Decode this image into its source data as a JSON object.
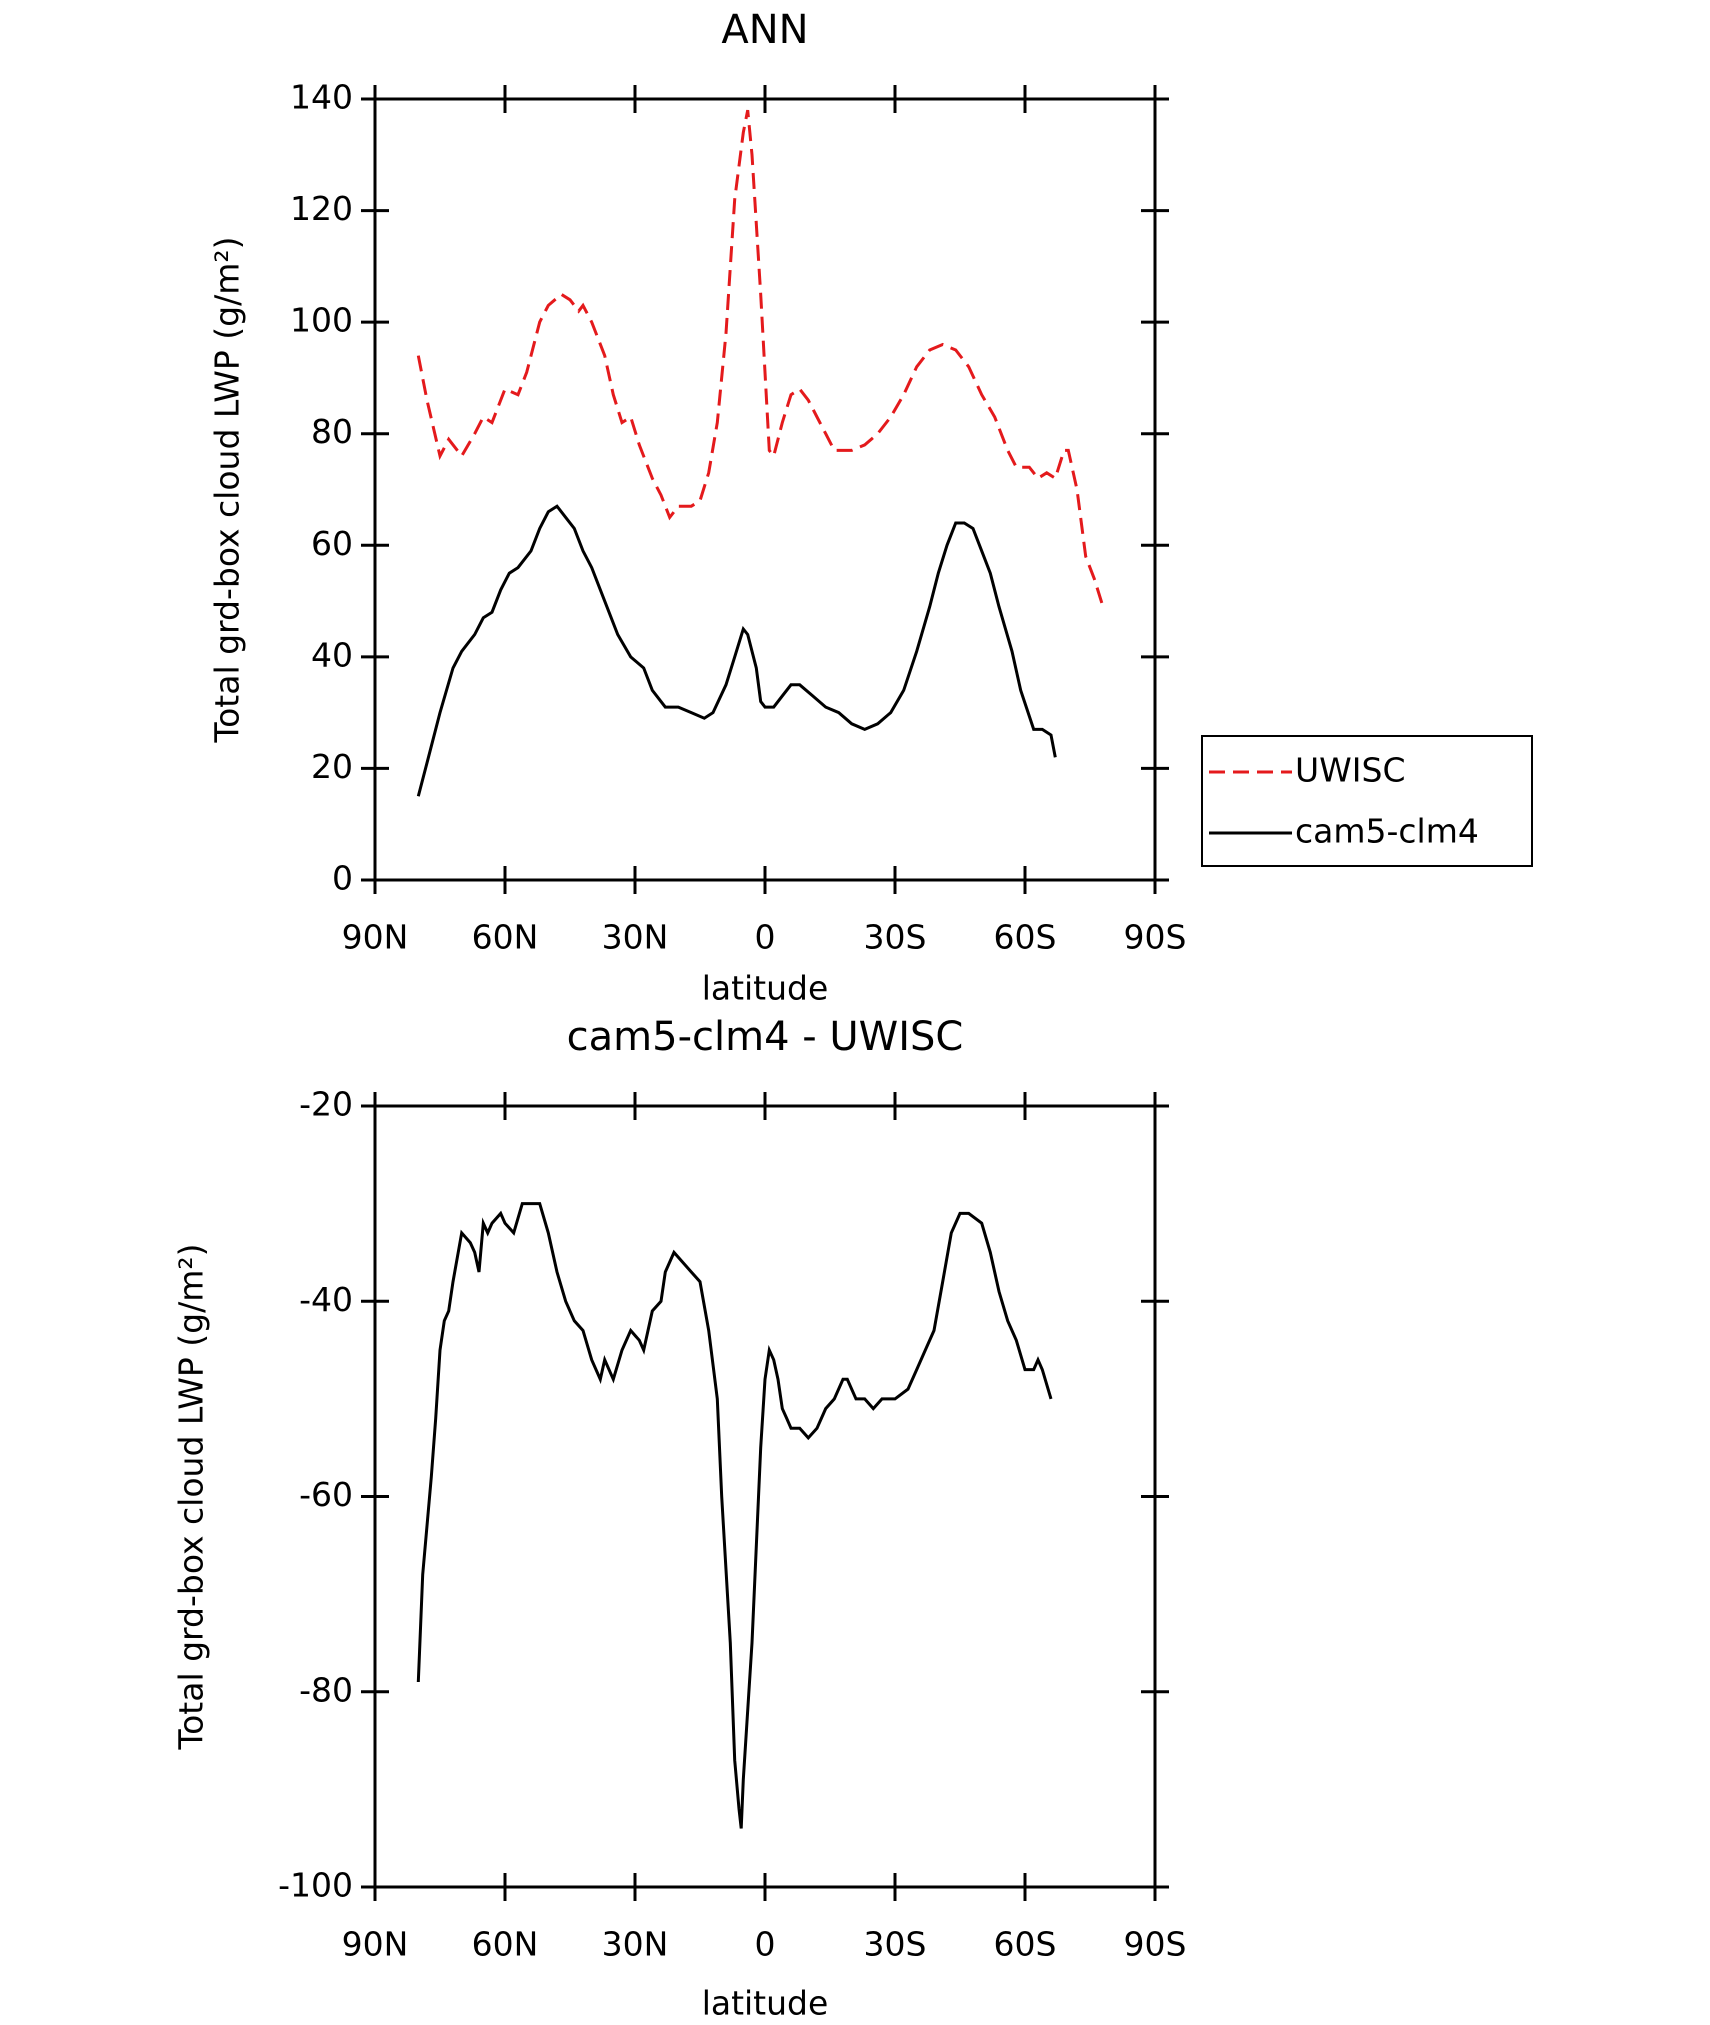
{
  "chart_data": [
    {
      "type": "line",
      "title": "ANN",
      "xlabel": "latitude",
      "ylabel": "Total grd-box cloud LWP (g/m²)",
      "xlim": [
        90,
        -90
      ],
      "xticks": [
        {
          "value": 90,
          "label": "90N"
        },
        {
          "value": 60,
          "label": "60N"
        },
        {
          "value": 30,
          "label": "30N"
        },
        0,
        {
          "value": -30,
          "label": "30S"
        },
        {
          "value": -60,
          "label": "60S"
        },
        {
          "value": -90,
          "label": "90S"
        }
      ],
      "ylim": [
        0,
        140
      ],
      "yticks": [
        0,
        20,
        40,
        60,
        80,
        100,
        120,
        140
      ],
      "legend": "right",
      "series": [
        {
          "name": "UWISC",
          "color": "#e41a1c",
          "dashed": true,
          "x": [
            80,
            78,
            75,
            73,
            70,
            67,
            65,
            63,
            60,
            57,
            55,
            52,
            50,
            47,
            45,
            43,
            42,
            40,
            37,
            35,
            33,
            31,
            29,
            26,
            24,
            22,
            20,
            17,
            15,
            13,
            11,
            9,
            7,
            5,
            4,
            3,
            1,
            -1,
            -2,
            -4,
            -6,
            -8,
            -10,
            -12,
            -14,
            -16,
            -18,
            -20,
            -23,
            -26,
            -29,
            -32,
            -35,
            -38,
            -41,
            -44,
            -47,
            -50,
            -53,
            -56,
            -58,
            -61,
            -63,
            -65,
            -67,
            -69,
            -70,
            -72,
            -74,
            -76,
            -78
          ],
          "values": [
            94,
            86,
            76,
            79,
            76,
            80,
            83,
            82,
            88,
            87,
            91,
            100,
            103,
            105,
            104,
            102,
            103,
            100,
            94,
            87,
            82,
            83,
            78,
            72,
            69,
            65,
            67,
            67,
            68,
            73,
            82,
            98,
            122,
            134,
            138,
            130,
            105,
            77,
            76,
            82,
            87,
            88,
            86,
            83,
            80,
            77,
            77,
            77,
            78,
            80,
            83,
            87,
            92,
            95,
            96,
            95,
            92,
            87,
            83,
            77,
            74,
            74,
            72,
            73,
            72,
            77,
            77,
            70,
            58,
            54,
            49
          ]
        },
        {
          "name": "cam5-clm4",
          "color": "#000000",
          "dashed": false,
          "x": [
            80,
            78,
            75,
            72,
            70,
            67,
            65,
            63,
            61,
            59,
            57,
            54,
            52,
            50,
            48,
            46,
            44,
            42,
            40,
            37,
            34,
            31,
            28,
            26,
            23,
            20,
            17,
            14,
            12,
            9,
            7,
            5,
            4,
            2,
            1,
            0,
            -2,
            -4,
            -6,
            -8,
            -11,
            -14,
            -17,
            -20,
            -23,
            -26,
            -29,
            -32,
            -35,
            -38,
            -40,
            -42,
            -44,
            -46,
            -48,
            -50,
            -52,
            -54,
            -57,
            -59,
            -62,
            -64,
            -66,
            -67
          ],
          "values": [
            15,
            21,
            30,
            38,
            41,
            44,
            47,
            48,
            52,
            55,
            56,
            59,
            63,
            66,
            67,
            65,
            63,
            59,
            56,
            50,
            44,
            40,
            38,
            34,
            31,
            31,
            30,
            29,
            30,
            35,
            40,
            45,
            44,
            38,
            32,
            31,
            31,
            33,
            35,
            35,
            33,
            31,
            30,
            28,
            27,
            28,
            30,
            34,
            41,
            49,
            55,
            60,
            64,
            64,
            63,
            59,
            55,
            49,
            41,
            34,
            27,
            27,
            26,
            22
          ]
        }
      ]
    },
    {
      "type": "line",
      "title": "cam5-clm4 - UWISC",
      "xlabel": "latitude",
      "ylabel": "Total grd-box cloud LWP (g/m²)",
      "xlim": [
        90,
        -90
      ],
      "xticks": [
        {
          "value": 90,
          "label": "90N"
        },
        {
          "value": 60,
          "label": "60N"
        },
        {
          "value": 30,
          "label": "30N"
        },
        0,
        {
          "value": -30,
          "label": "30S"
        },
        {
          "value": -60,
          "label": "60S"
        },
        {
          "value": -90,
          "label": "90S"
        }
      ],
      "ylim": [
        -100,
        -20
      ],
      "yticks": [
        -100,
        -80,
        -60,
        -40,
        -20
      ],
      "series": [
        {
          "color": "#000000",
          "dashed": false,
          "x": [
            80,
            79,
            77,
            76,
            75,
            74,
            73,
            72,
            70,
            68,
            67,
            66,
            65,
            64,
            63,
            61,
            60,
            58,
            56,
            54,
            52,
            50,
            48,
            46,
            44,
            42,
            40,
            38,
            37,
            35,
            33,
            31,
            29,
            28,
            26,
            24,
            23,
            21,
            19,
            17,
            15,
            13,
            11,
            10,
            8,
            7,
            6,
            5.5,
            5,
            3,
            1,
            0,
            -1,
            -2,
            -3,
            -4,
            -5,
            -6,
            -8,
            -10,
            -12,
            -14,
            -16,
            -18,
            -19,
            -21,
            -23,
            -25,
            -27,
            -30,
            -33,
            -35,
            -37,
            -39,
            -41,
            -43,
            -45,
            -47,
            -50,
            -52,
            -54,
            -56,
            -58,
            -60,
            -62,
            -63,
            -64,
            -66
          ],
          "values": [
            -79,
            -68,
            -58,
            -52,
            -45,
            -42,
            -41,
            -38,
            -33,
            -34,
            -35,
            -37,
            -32,
            -33,
            -32,
            -31,
            -32,
            -33,
            -30,
            -30,
            -30,
            -33,
            -37,
            -40,
            -42,
            -43,
            -46,
            -48,
            -46,
            -48,
            -45,
            -43,
            -44,
            -45,
            -41,
            -40,
            -37,
            -35,
            -36,
            -37,
            -38,
            -43,
            -50,
            -60,
            -75,
            -87,
            -92,
            -94,
            -89,
            -75,
            -55,
            -48,
            -45,
            -46,
            -48,
            -51,
            -52,
            -53,
            -53,
            -54,
            -53,
            -51,
            -50,
            -48,
            -48,
            -50,
            -50,
            -51,
            -50,
            -50,
            -49,
            -47,
            -45,
            -43,
            -38,
            -33,
            -31,
            -31,
            -32,
            -35,
            -39,
            -42,
            -44,
            -47,
            -47,
            -46,
            -47,
            -50
          ]
        }
      ]
    }
  ]
}
